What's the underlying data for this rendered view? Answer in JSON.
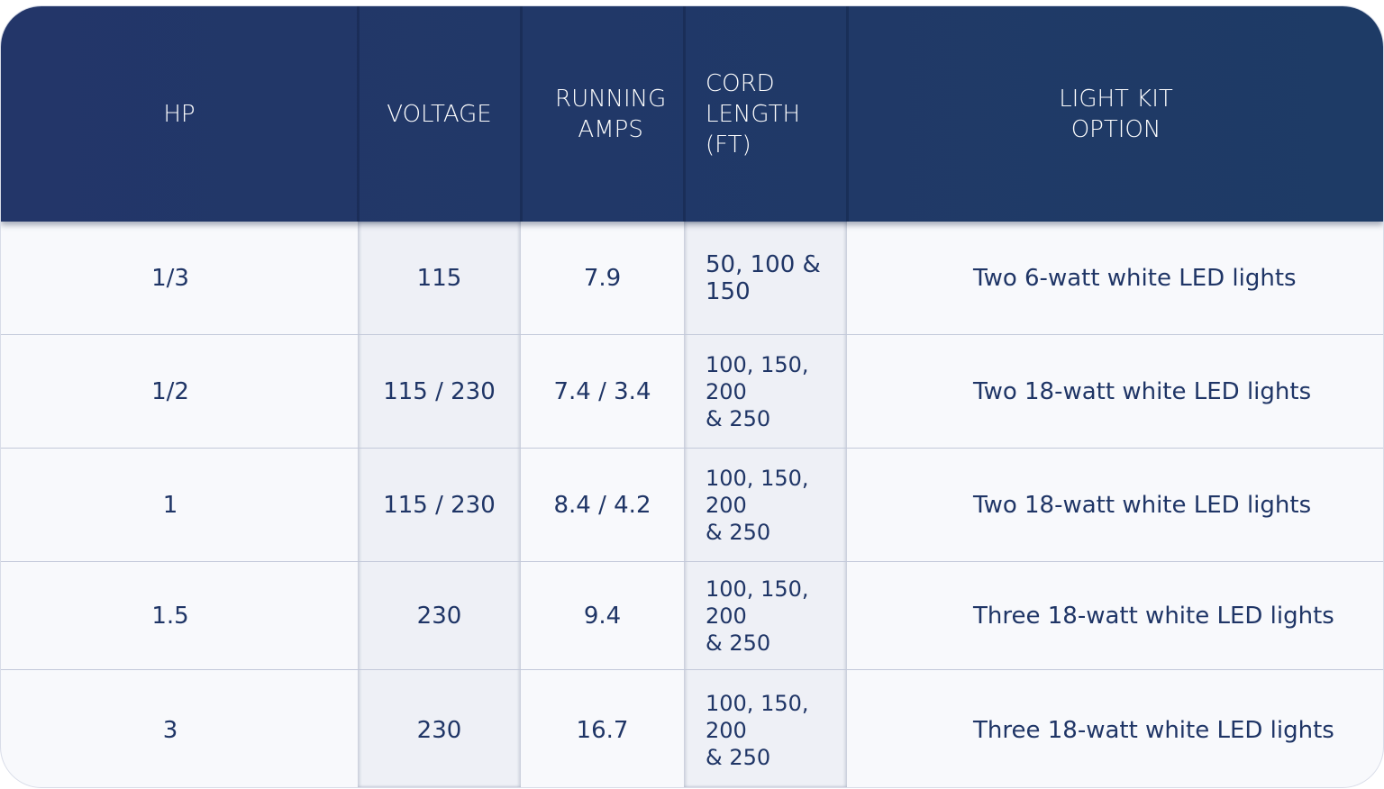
{
  "table": {
    "headers": [
      "HP",
      "VOLTAGE",
      "RUNNING\nAMPS",
      "CORD\nLENGTH\n(FT)",
      "LIGHT KIT\nOPTION"
    ],
    "rows": [
      [
        "1/3",
        "115",
        "7.9",
        "50, 100 &\n150",
        "Two 6-watt white LED lights"
      ],
      [
        "1/2",
        "115 / 230",
        "7.4 / 3.4",
        "100, 150, 200\n& 250",
        "Two 18-watt white LED lights"
      ],
      [
        "1",
        "115 / 230",
        "8.4 / 4.2",
        "100, 150, 200\n& 250",
        "Two 18-watt white LED lights"
      ],
      [
        "1.5",
        "230",
        "9.4",
        "100, 150, 200\n& 250",
        "Three 18-watt white LED lights"
      ],
      [
        "3",
        "230",
        "16.7",
        "100, 150, 200\n& 250",
        "Three 18-watt white LED lights"
      ]
    ]
  },
  "colors": {
    "header": "#223668",
    "text": "#1f3566",
    "shaded_column": "#eef0f6",
    "row_bg": "#f8f9fc"
  }
}
